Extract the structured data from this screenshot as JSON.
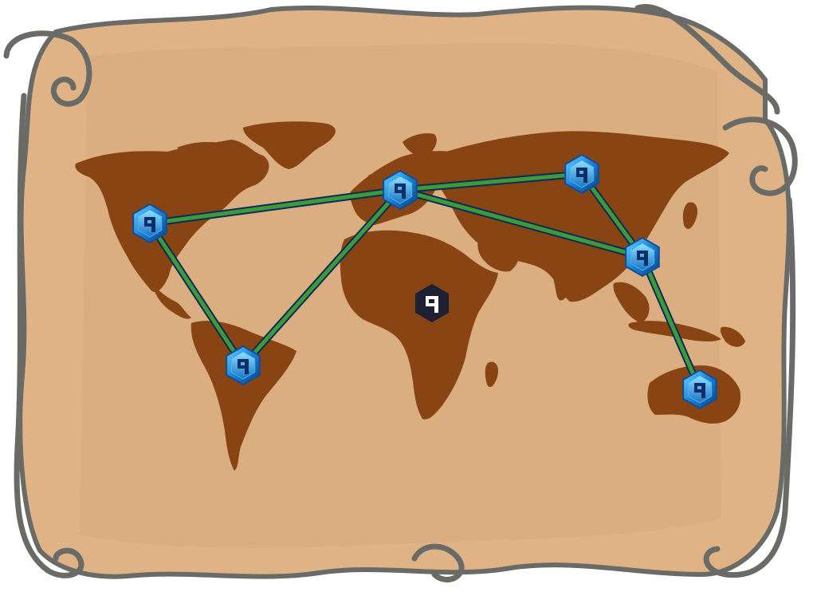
{
  "map": {
    "style": "parchment-scroll-world-map",
    "colors": {
      "parchment": "#dfb385",
      "parchment_shadow": "#c79a6c",
      "scroll_curl": "#b9b2a2",
      "scroll_outline": "#6a6a66",
      "land": "#884413",
      "link_outer": "#0f2a55",
      "link_inner": "#3c9a3c",
      "node_light": "#3fb6f2",
      "node_mid": "#1e7fd0",
      "node_dark": "#0d4f9c",
      "center_logo_bg": "#1c2032",
      "center_logo_fg": "#ffffff"
    },
    "network": {
      "node_icon": "q-logo-hexagon-icon",
      "nodes": [
        {
          "id": "north-america"
        },
        {
          "id": "south-america"
        },
        {
          "id": "europe"
        },
        {
          "id": "russia"
        },
        {
          "id": "east-asia"
        },
        {
          "id": "australia"
        }
      ],
      "links": [
        {
          "from": "north-america",
          "to": "europe"
        },
        {
          "from": "north-america",
          "to": "south-america"
        },
        {
          "from": "south-america",
          "to": "europe"
        },
        {
          "from": "europe",
          "to": "russia"
        },
        {
          "from": "europe",
          "to": "east-asia"
        },
        {
          "from": "russia",
          "to": "east-asia"
        },
        {
          "from": "east-asia",
          "to": "australia"
        }
      ]
    },
    "center_logo": {
      "icon": "q-logo-icon",
      "region": "africa"
    }
  }
}
